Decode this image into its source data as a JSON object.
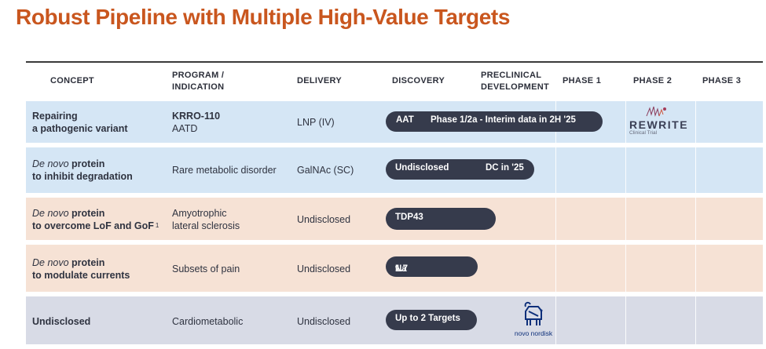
{
  "title": "Robust Pipeline with Multiple High-Value Targets",
  "headers": {
    "concept": "CONCEPT",
    "program_l1": "PROGRAM /",
    "program_l2": "INDICATION",
    "delivery": "DELIVERY",
    "discovery": "DISCOVERY",
    "preclinical_l1": "PRECLINICAL",
    "preclinical_l2": "DEVELOPMENT",
    "phase1": "PHASE 1",
    "phase2": "PHASE 2",
    "phase3": "PHASE 3"
  },
  "rows": [
    {
      "concept_l1": "Repairing",
      "concept_l2": "a pathogenic variant",
      "program_name": "KRRO-110",
      "indication": "AATD",
      "delivery": "LNP (IV)",
      "bar_left": "AAT",
      "bar_right": "Phase 1/2a - Interim data in 2H '25",
      "partner": "REWRITE",
      "partner_sub": "Clinical Trial"
    },
    {
      "concept_italic": "De novo",
      "concept_l1_rest": " protein",
      "concept_l2": "to inhibit degradation",
      "indication": "Rare metabolic disorder",
      "delivery": "GalNAc (SC)",
      "bar_left": "Undisclosed",
      "bar_right": "DC in '25"
    },
    {
      "concept_italic": "De novo",
      "concept_l1_rest": " protein",
      "concept_l2": "to overcome LoF and GoF",
      "footnote": "1",
      "indication_l1": "Amyotrophic",
      "indication_l2": "lateral sclerosis",
      "delivery": "Undisclosed",
      "bar_left": "TDP43"
    },
    {
      "concept_italic": "De novo",
      "concept_l1_rest": " protein",
      "concept_l2": "to modulate currents",
      "indication": "Subsets of pain",
      "delivery": "Undisclosed",
      "bar_left_a": "Na",
      "bar_left_sub": "v",
      "bar_left_b": "1.7"
    },
    {
      "concept": "Undisclosed",
      "indication": "Cardiometabolic",
      "delivery": "Undisclosed",
      "bar_left": "Up to 2 Targets",
      "partner": "novo nordisk"
    }
  ],
  "colors": {
    "title": "#c9561e",
    "row_blue": "#d5e6f5",
    "row_peach": "#f6e2d5",
    "row_gray": "#d8dbe6",
    "bar": "#363b4c",
    "novo_blue": "#0d2f7a"
  }
}
